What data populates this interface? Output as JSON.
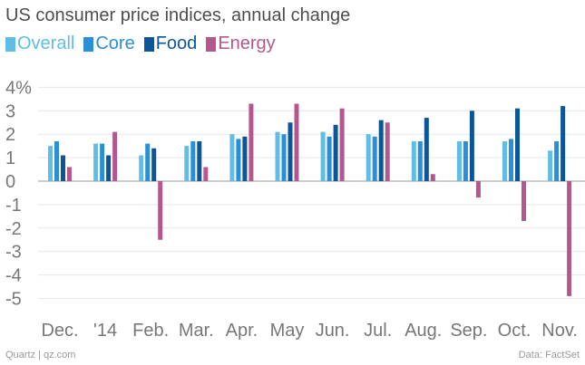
{
  "chart_data": {
    "type": "bar",
    "title": "US consumer price indices, annual change",
    "categories": [
      "Dec.",
      "'14",
      "Feb.",
      "Mar.",
      "Apr.",
      "May",
      "Jun.",
      "Jul.",
      "Aug.",
      "Sep.",
      "Oct.",
      "Nov."
    ],
    "series": [
      {
        "name": "Overall",
        "color": "#5fbde6",
        "values": [
          1.5,
          1.6,
          1.1,
          1.5,
          2.0,
          2.1,
          2.1,
          2.0,
          1.7,
          1.7,
          1.7,
          1.3
        ]
      },
      {
        "name": "Core",
        "color": "#2b8fd6",
        "values": [
          1.7,
          1.6,
          1.6,
          1.7,
          1.8,
          2.0,
          1.9,
          1.9,
          1.7,
          1.7,
          1.8,
          1.7
        ]
      },
      {
        "name": "Food",
        "color": "#0d5599",
        "values": [
          1.1,
          1.1,
          1.4,
          1.7,
          1.9,
          2.5,
          2.4,
          2.6,
          2.7,
          3.0,
          3.1,
          3.2
        ]
      },
      {
        "name": "Energy",
        "color": "#b5578f",
        "values": [
          0.6,
          2.1,
          -2.5,
          0.6,
          3.3,
          3.3,
          3.1,
          2.5,
          0.3,
          -0.7,
          -1.7,
          -4.9
        ]
      }
    ],
    "y_ticks": [
      "4%",
      "3",
      "2",
      "1",
      "0",
      "-1",
      "-2",
      "-3",
      "-4",
      "-5"
    ],
    "ylim": [
      -5,
      4
    ],
    "xlabel": "",
    "ylabel": ""
  },
  "footer": {
    "source_left": "Quartz | qz.com",
    "source_right": "Data: FactSet"
  }
}
